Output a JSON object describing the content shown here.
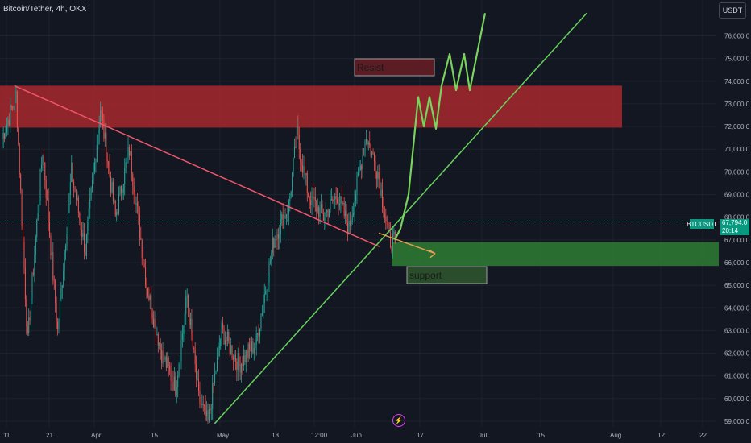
{
  "header": {
    "title": "Bitcoin/Tether, 4h, OKX",
    "currency_button": "USDT"
  },
  "ticker": {
    "symbol": "BTCUSDT",
    "price": "67,794.0",
    "countdown": "20:14"
  },
  "colors": {
    "background": "#131722",
    "grid": "#1e222d",
    "up_candle": "#26a69a",
    "down_candle": "#ef5350",
    "resist_zone": "#a8282e",
    "support_zone": "#2e7d32",
    "trendline_down": "#f0566a",
    "trendline_up": "#66d35d",
    "projection": "#7ad35e",
    "accent": "#089981"
  },
  "icons": {
    "flash": "lightning-icon"
  },
  "chart_data": {
    "type": "candlestick",
    "title": "Bitcoin/Tether, 4h, OKX",
    "ylim": [
      58800,
      77000
    ],
    "y_ticks": [
      "59,000.0",
      "60,000.0",
      "61,000.0",
      "62,000.0",
      "63,000.0",
      "64,000.0",
      "65,000.0",
      "66,000.0",
      "67,000.0",
      "68,000.0",
      "69,000.0",
      "70,000.0",
      "71,000.0",
      "72,000.0",
      "73,000.0",
      "74,000.0",
      "75,000.0",
      "76,000.0"
    ],
    "x_ticks": [
      "11",
      "21",
      "Apr",
      "15",
      "May",
      "13",
      "12:00",
      "Jun",
      "17",
      "Jul",
      "15",
      "Aug",
      "12",
      "22"
    ],
    "current_price": 67794,
    "zones": [
      {
        "name": "Resist",
        "from_price": 71950,
        "to_price": 73800,
        "label": "Resist"
      },
      {
        "name": "support",
        "from_price": 65850,
        "to_price": 66900,
        "label": "support"
      }
    ],
    "trendlines": [
      {
        "name": "descending-trendline",
        "points": [
          [
            0.02,
            73800
          ],
          [
            0.53,
            66700
          ]
        ]
      },
      {
        "name": "ascending-trendline",
        "points": [
          [
            0.3,
            58900
          ],
          [
            0.82,
            77000
          ]
        ]
      }
    ],
    "projection": [
      67000,
      67500,
      69000,
      73300,
      72000,
      73300,
      71900,
      73800,
      75200,
      73600,
      75200,
      73600,
      77000
    ],
    "candle_waypoints": [
      [
        0,
        71500
      ],
      [
        12,
        73400
      ],
      [
        22,
        62500
      ],
      [
        35,
        71000
      ],
      [
        48,
        63000
      ],
      [
        60,
        70000
      ],
      [
        72,
        66500
      ],
      [
        85,
        72800
      ],
      [
        98,
        68000
      ],
      [
        110,
        71000
      ],
      [
        125,
        65000
      ],
      [
        138,
        62000
      ],
      [
        150,
        60500
      ],
      [
        160,
        64500
      ],
      [
        170,
        60000
      ],
      [
        178,
        58900
      ],
      [
        190,
        63000
      ],
      [
        205,
        61500
      ],
      [
        220,
        62500
      ],
      [
        235,
        67000
      ],
      [
        248,
        68500
      ],
      [
        255,
        71600
      ],
      [
        265,
        69000
      ],
      [
        278,
        68000
      ],
      [
        290,
        69000
      ],
      [
        300,
        67500
      ],
      [
        315,
        71600
      ],
      [
        325,
        70000
      ],
      [
        335,
        67000
      ],
      [
        340,
        66900
      ]
    ]
  }
}
